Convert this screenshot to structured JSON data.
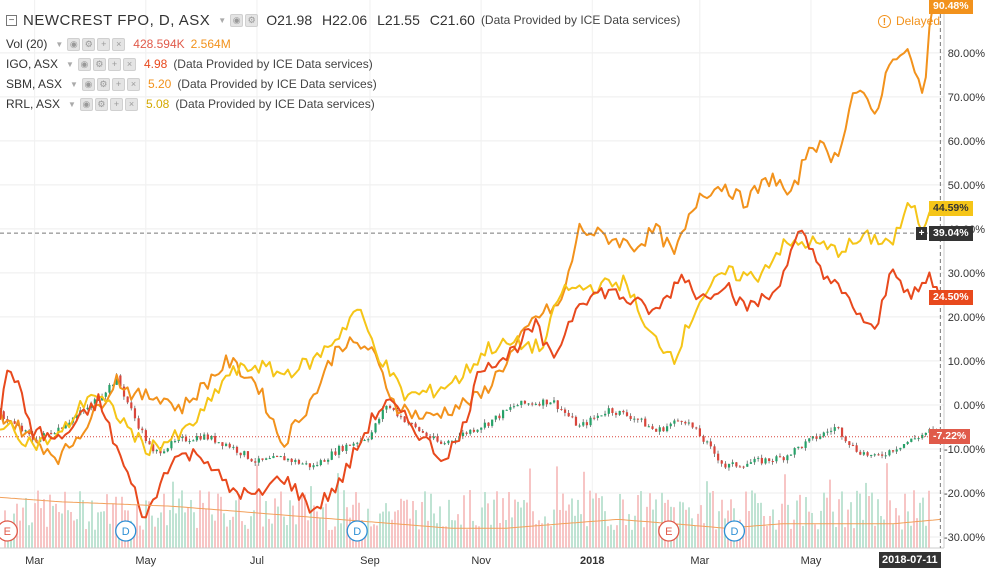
{
  "header": {
    "symbol": "NEWCREST FPO, D, ASX",
    "open": "O21.98",
    "high": "H22.06",
    "low": "L21.55",
    "close": "C21.60",
    "provider": "(Data Provided by ICE Data services)",
    "delayed": "Delayed"
  },
  "indicators": [
    {
      "name": "Vol (20)",
      "values": [
        "428.594K",
        "2.564M"
      ],
      "color": "#e05a4a"
    },
    {
      "name": "IGO, ASX",
      "values": [
        "4.98"
      ],
      "provider": "(Data Provided by ICE Data services)",
      "color": "#e8491d"
    },
    {
      "name": "SBM, ASX",
      "values": [
        "5.20"
      ],
      "provider": "(Data Provided by ICE Data services)",
      "color": "#f2921c"
    },
    {
      "name": "RRL, ASX",
      "values": [
        "5.08"
      ],
      "provider": "(Data Provided by ICE Data services)",
      "color": "#f5c518"
    }
  ],
  "price_tags": {
    "sbm": {
      "text": "90.48%",
      "color": "#f2921c"
    },
    "rrl": {
      "text": "44.59%",
      "color": "#f5c518",
      "text_color": "#333333"
    },
    "crosshair": {
      "text": "39.04%",
      "color": "#333333"
    },
    "igo": {
      "text": "24.50%",
      "color": "#e8491d"
    },
    "ncm": {
      "text": "-7.22%",
      "color": "#e05a4a"
    }
  },
  "cursor_date": "2018-07-11",
  "event_markers": [
    {
      "label": "E",
      "x": "2017-02-14",
      "color": "#e05a4a"
    },
    {
      "label": "D",
      "x": "2017-04-20",
      "color": "#2d8fd5"
    },
    {
      "label": "D",
      "x": "2017-08-25",
      "color": "#2d8fd5"
    },
    {
      "label": "E",
      "x": "2018-02-12",
      "color": "#e05a4a"
    },
    {
      "label": "D",
      "x": "2018-03-20",
      "color": "#2d8fd5"
    }
  ],
  "chart_data": {
    "type": "line",
    "x_range": [
      "2017-02-10",
      "2018-07-13"
    ],
    "y_axis": {
      "unit": "%",
      "range": [
        -32.5,
        92
      ],
      "ticks": [
        -30,
        -20,
        -10,
        0,
        10,
        20,
        30,
        40,
        50,
        60,
        70,
        80
      ],
      "tick_labels": [
        "-30.00%",
        "-20.00%",
        "-10.00%",
        "0.00%",
        "10.00%",
        "20.00%",
        "30.00%",
        "40.00%",
        "50.00%",
        "60.00%",
        "70.00%",
        "80.00%"
      ]
    },
    "x_ticks": [
      {
        "label": "Mar",
        "x": "2017-03-01"
      },
      {
        "label": "May",
        "x": "2017-05-01"
      },
      {
        "label": "Jul",
        "x": "2017-07-01"
      },
      {
        "label": "Sep",
        "x": "2017-09-01"
      },
      {
        "label": "Nov",
        "x": "2017-11-01"
      },
      {
        "label": "2018",
        "x": "2018-01-01"
      },
      {
        "label": "Mar",
        "x": "2018-03-01"
      },
      {
        "label": "May",
        "x": "2018-05-01"
      }
    ],
    "grid": true,
    "crosshair": {
      "x": "2018-07-11",
      "y": 39.04
    },
    "series": [
      {
        "name": "SBM, ASX",
        "color": "#f2921c",
        "points": [
          [
            "2017-02-10",
            -2
          ],
          [
            "2017-02-20",
            -5
          ],
          [
            "2017-03-01",
            -8
          ],
          [
            "2017-03-15",
            -12
          ],
          [
            "2017-04-01",
            -3
          ],
          [
            "2017-04-15",
            6
          ],
          [
            "2017-04-25",
            2
          ],
          [
            "2017-05-10",
            2
          ],
          [
            "2017-05-20",
            -1
          ],
          [
            "2017-06-01",
            4
          ],
          [
            "2017-06-15",
            10
          ],
          [
            "2017-07-01",
            5
          ],
          [
            "2017-07-15",
            -9
          ],
          [
            "2017-08-01",
            2
          ],
          [
            "2017-08-15",
            14
          ],
          [
            "2017-09-01",
            13
          ],
          [
            "2017-09-15",
            0
          ],
          [
            "2017-10-01",
            -3
          ],
          [
            "2017-10-15",
            -1
          ],
          [
            "2017-11-01",
            2
          ],
          [
            "2017-11-15",
            10
          ],
          [
            "2017-12-01",
            20
          ],
          [
            "2017-12-15",
            23
          ],
          [
            "2017-12-25",
            40
          ],
          [
            "2018-01-10",
            38
          ],
          [
            "2018-01-25",
            36
          ],
          [
            "2018-02-05",
            40
          ],
          [
            "2018-02-15",
            34
          ],
          [
            "2018-03-01",
            48
          ],
          [
            "2018-03-15",
            50
          ],
          [
            "2018-03-25",
            46
          ],
          [
            "2018-04-10",
            52
          ],
          [
            "2018-04-20",
            47
          ],
          [
            "2018-05-01",
            60
          ],
          [
            "2018-05-15",
            56
          ],
          [
            "2018-05-25",
            72
          ],
          [
            "2018-06-05",
            66
          ],
          [
            "2018-06-15",
            80
          ],
          [
            "2018-06-25",
            79
          ],
          [
            "2018-07-02",
            69
          ],
          [
            "2018-07-06",
            90
          ],
          [
            "2018-07-11",
            90.48
          ]
        ]
      },
      {
        "name": "RRL, ASX",
        "color": "#f5c518",
        "points": [
          [
            "2017-02-10",
            -4
          ],
          [
            "2017-03-01",
            -9
          ],
          [
            "2017-03-15",
            -7
          ],
          [
            "2017-04-01",
            3
          ],
          [
            "2017-04-15",
            -2
          ],
          [
            "2017-05-01",
            -10
          ],
          [
            "2017-05-20",
            -7
          ],
          [
            "2017-06-01",
            -2
          ],
          [
            "2017-06-15",
            7
          ],
          [
            "2017-07-01",
            9
          ],
          [
            "2017-07-15",
            7
          ],
          [
            "2017-08-01",
            10
          ],
          [
            "2017-08-15",
            16
          ],
          [
            "2017-08-25",
            22
          ],
          [
            "2017-09-05",
            12
          ],
          [
            "2017-09-20",
            2
          ],
          [
            "2017-10-05",
            3
          ],
          [
            "2017-10-20",
            6
          ],
          [
            "2017-11-05",
            13
          ],
          [
            "2017-11-20",
            14
          ],
          [
            "2017-12-05",
            13
          ],
          [
            "2017-12-15",
            26
          ],
          [
            "2018-01-05",
            27
          ],
          [
            "2018-01-20",
            28
          ],
          [
            "2018-01-30",
            17
          ],
          [
            "2018-02-15",
            11
          ],
          [
            "2018-03-01",
            24
          ],
          [
            "2018-03-15",
            30
          ],
          [
            "2018-04-01",
            29
          ],
          [
            "2018-04-15",
            36
          ],
          [
            "2018-05-01",
            37
          ],
          [
            "2018-05-15",
            35
          ],
          [
            "2018-06-01",
            38
          ],
          [
            "2018-06-15",
            37
          ],
          [
            "2018-06-25",
            46
          ],
          [
            "2018-07-01",
            40
          ],
          [
            "2018-07-06",
            46
          ],
          [
            "2018-07-11",
            44.59
          ]
        ]
      },
      {
        "name": "IGO, ASX",
        "color": "#e8491d",
        "points": [
          [
            "2017-02-10",
            -3
          ],
          [
            "2017-02-15",
            10
          ],
          [
            "2017-02-28",
            -6
          ],
          [
            "2017-03-15",
            -8
          ],
          [
            "2017-04-05",
            1
          ],
          [
            "2017-04-20",
            -15
          ],
          [
            "2017-05-01",
            -26
          ],
          [
            "2017-05-15",
            -12
          ],
          [
            "2017-06-01",
            -11
          ],
          [
            "2017-06-15",
            -19
          ],
          [
            "2017-07-01",
            -21
          ],
          [
            "2017-07-15",
            -16
          ],
          [
            "2017-08-01",
            -24
          ],
          [
            "2017-08-15",
            -18
          ],
          [
            "2017-09-01",
            -4
          ],
          [
            "2017-09-10",
            1
          ],
          [
            "2017-09-25",
            -5
          ],
          [
            "2017-10-10",
            -12
          ],
          [
            "2017-10-20",
            -8
          ],
          [
            "2017-11-01",
            9
          ],
          [
            "2017-11-15",
            11
          ],
          [
            "2017-12-01",
            18
          ],
          [
            "2017-12-10",
            10
          ],
          [
            "2017-12-25",
            24
          ],
          [
            "2018-01-10",
            26
          ],
          [
            "2018-01-25",
            23
          ],
          [
            "2018-02-05",
            21
          ],
          [
            "2018-02-20",
            30
          ],
          [
            "2018-03-01",
            24
          ],
          [
            "2018-03-15",
            28
          ],
          [
            "2018-03-25",
            22
          ],
          [
            "2018-04-10",
            25
          ],
          [
            "2018-04-25",
            39
          ],
          [
            "2018-05-10",
            29
          ],
          [
            "2018-05-25",
            22
          ],
          [
            "2018-06-05",
            16
          ],
          [
            "2018-06-15",
            32
          ],
          [
            "2018-06-25",
            24
          ],
          [
            "2018-07-05",
            29
          ],
          [
            "2018-07-11",
            24.5
          ]
        ]
      },
      {
        "name": "NEWCREST FPO, D, ASX",
        "color": "#26a269",
        "points": [
          [
            "2017-02-10",
            -2
          ],
          [
            "2017-03-01",
            -8
          ],
          [
            "2017-03-15",
            -5
          ],
          [
            "2017-04-01",
            0
          ],
          [
            "2017-04-15",
            6
          ],
          [
            "2017-04-25",
            -3
          ],
          [
            "2017-05-05",
            -11
          ],
          [
            "2017-05-20",
            -8
          ],
          [
            "2017-06-01",
            -7
          ],
          [
            "2017-06-15",
            -9
          ],
          [
            "2017-07-01",
            -13
          ],
          [
            "2017-07-15",
            -12
          ],
          [
            "2017-08-01",
            -14
          ],
          [
            "2017-08-15",
            -10
          ],
          [
            "2017-09-01",
            -7
          ],
          [
            "2017-09-10",
            0
          ],
          [
            "2017-09-25",
            -5
          ],
          [
            "2017-10-10",
            -9
          ],
          [
            "2017-10-25",
            -6
          ],
          [
            "2017-11-05",
            -4
          ],
          [
            "2017-11-20",
            0
          ],
          [
            "2017-12-10",
            1
          ],
          [
            "2017-12-25",
            -5
          ],
          [
            "2018-01-10",
            -1
          ],
          [
            "2018-01-25",
            -3
          ],
          [
            "2018-02-05",
            -6
          ],
          [
            "2018-02-20",
            -3
          ],
          [
            "2018-03-01",
            -7
          ],
          [
            "2018-03-15",
            -14
          ],
          [
            "2018-03-30",
            -13
          ],
          [
            "2018-04-15",
            -12
          ],
          [
            "2018-05-01",
            -8
          ],
          [
            "2018-05-15",
            -5
          ],
          [
            "2018-05-25",
            -10
          ],
          [
            "2018-06-05",
            -12
          ],
          [
            "2018-06-20",
            -9
          ],
          [
            "2018-07-05",
            -6
          ],
          [
            "2018-07-11",
            -7.22
          ]
        ]
      },
      {
        "name": "Vol (20)",
        "color": "#f2a05a",
        "points": [
          [
            "2017-02-10",
            -21
          ],
          [
            "2017-03-15",
            -22
          ],
          [
            "2017-04-15",
            -22.5
          ],
          [
            "2017-05-15",
            -23
          ],
          [
            "2017-06-15",
            -24
          ],
          [
            "2017-07-15",
            -25
          ],
          [
            "2017-08-15",
            -26
          ],
          [
            "2017-09-15",
            -27
          ],
          [
            "2017-10-15",
            -28
          ],
          [
            "2017-11-15",
            -28
          ],
          [
            "2017-12-15",
            -27
          ],
          [
            "2018-01-15",
            -26
          ],
          [
            "2018-02-15",
            -27
          ],
          [
            "2018-03-15",
            -28
          ],
          [
            "2018-04-15",
            -27
          ],
          [
            "2018-05-15",
            -27
          ],
          [
            "2018-06-15",
            -27
          ],
          [
            "2018-07-11",
            -26
          ]
        ]
      }
    ]
  }
}
